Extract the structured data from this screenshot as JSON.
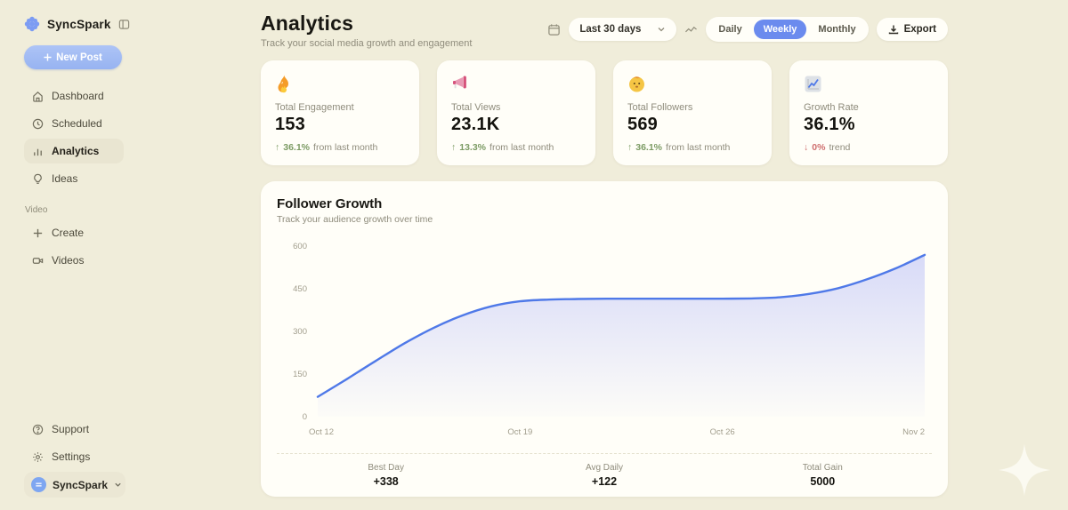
{
  "app": {
    "name": "SyncSpark"
  },
  "colors": {
    "background": "#f0edda",
    "card": "#fffef8",
    "accent_blue": "#6b8bee",
    "chart_line": "#4f79e8",
    "positive_green": "#7c9b64",
    "negative_red": "#cf6f6f"
  },
  "sidebar": {
    "logo_text": "SyncSpark",
    "new_post_label": "New Post",
    "nav": [
      {
        "label": "Dashboard",
        "icon": "home-icon",
        "active": false
      },
      {
        "label": "Scheduled",
        "icon": "clock-icon",
        "active": false
      },
      {
        "label": "Analytics",
        "icon": "bar-chart-icon",
        "active": true
      },
      {
        "label": "Ideas",
        "icon": "lightbulb-icon",
        "active": false
      }
    ],
    "section_label": "Video",
    "video_nav": [
      {
        "label": "Create",
        "icon": "plus-icon"
      },
      {
        "label": "Videos",
        "icon": "video-camera-icon"
      }
    ],
    "footer_nav": [
      {
        "label": "Support",
        "icon": "help-circle-icon"
      },
      {
        "label": "Settings",
        "icon": "gear-icon"
      }
    ],
    "account": {
      "name": "SyncSpark",
      "icon": "avatar-circle",
      "chevron": "chevron-down-icon"
    }
  },
  "header": {
    "title": "Analytics",
    "subtitle": "Track your social media growth and engagement",
    "date_range": "Last 30 days",
    "view_options": [
      "Daily",
      "Weekly",
      "Monthly"
    ],
    "view_selected": "Weekly",
    "export_label": "Export"
  },
  "stats_cards": [
    {
      "icon": "fire-icon",
      "label": "Total Engagement",
      "value": "153",
      "arrow": "↑",
      "change": "36.1%",
      "direction": "up",
      "suffix": "from last month"
    },
    {
      "icon": "megaphone-icon",
      "label": "Total Views",
      "value": "23.1K",
      "arrow": "↑",
      "change": "13.3%",
      "direction": "up",
      "suffix": "from last month"
    },
    {
      "icon": "face-icon",
      "label": "Total Followers",
      "value": "569",
      "arrow": "↑",
      "change": "36.1%",
      "direction": "up",
      "suffix": "from last month"
    },
    {
      "icon": "chart-increasing-icon",
      "label": "Growth Rate",
      "value": "36.1%",
      "arrow": "↓",
      "change": "0%",
      "direction": "down",
      "suffix": "trend"
    }
  ],
  "chart_card": {
    "title": "Follower Growth",
    "subtitle": "Track your audience growth over time",
    "footer_stats": [
      {
        "label": "Best Day",
        "value": "+338"
      },
      {
        "label": "Avg Daily",
        "value": "+122"
      },
      {
        "label": "Total Gain",
        "value": "5000"
      }
    ]
  },
  "chart_data": {
    "type": "area",
    "title": "Follower Growth",
    "x_tick_labels": [
      "Oct 12",
      "Oct 19",
      "Oct 26",
      "Nov 2"
    ],
    "x_tick_indices": [
      0,
      7,
      14,
      21
    ],
    "y_ticks": [
      0,
      150,
      300,
      450,
      600
    ],
    "ylim": [
      0,
      600
    ],
    "grid": false,
    "legend": false,
    "series": [
      {
        "name": "Followers",
        "values": [
          70,
          132,
          196,
          258,
          312,
          356,
          388,
          406,
          412,
          414,
          415,
          415,
          415,
          415,
          415,
          416,
          420,
          432,
          452,
          483,
          522,
          569
        ]
      }
    ],
    "line_color": "#4f79e8",
    "fill_color_top": "rgba(125,136,248,0.30)",
    "fill_color_bottom": "rgba(125,136,248,0.02)"
  }
}
